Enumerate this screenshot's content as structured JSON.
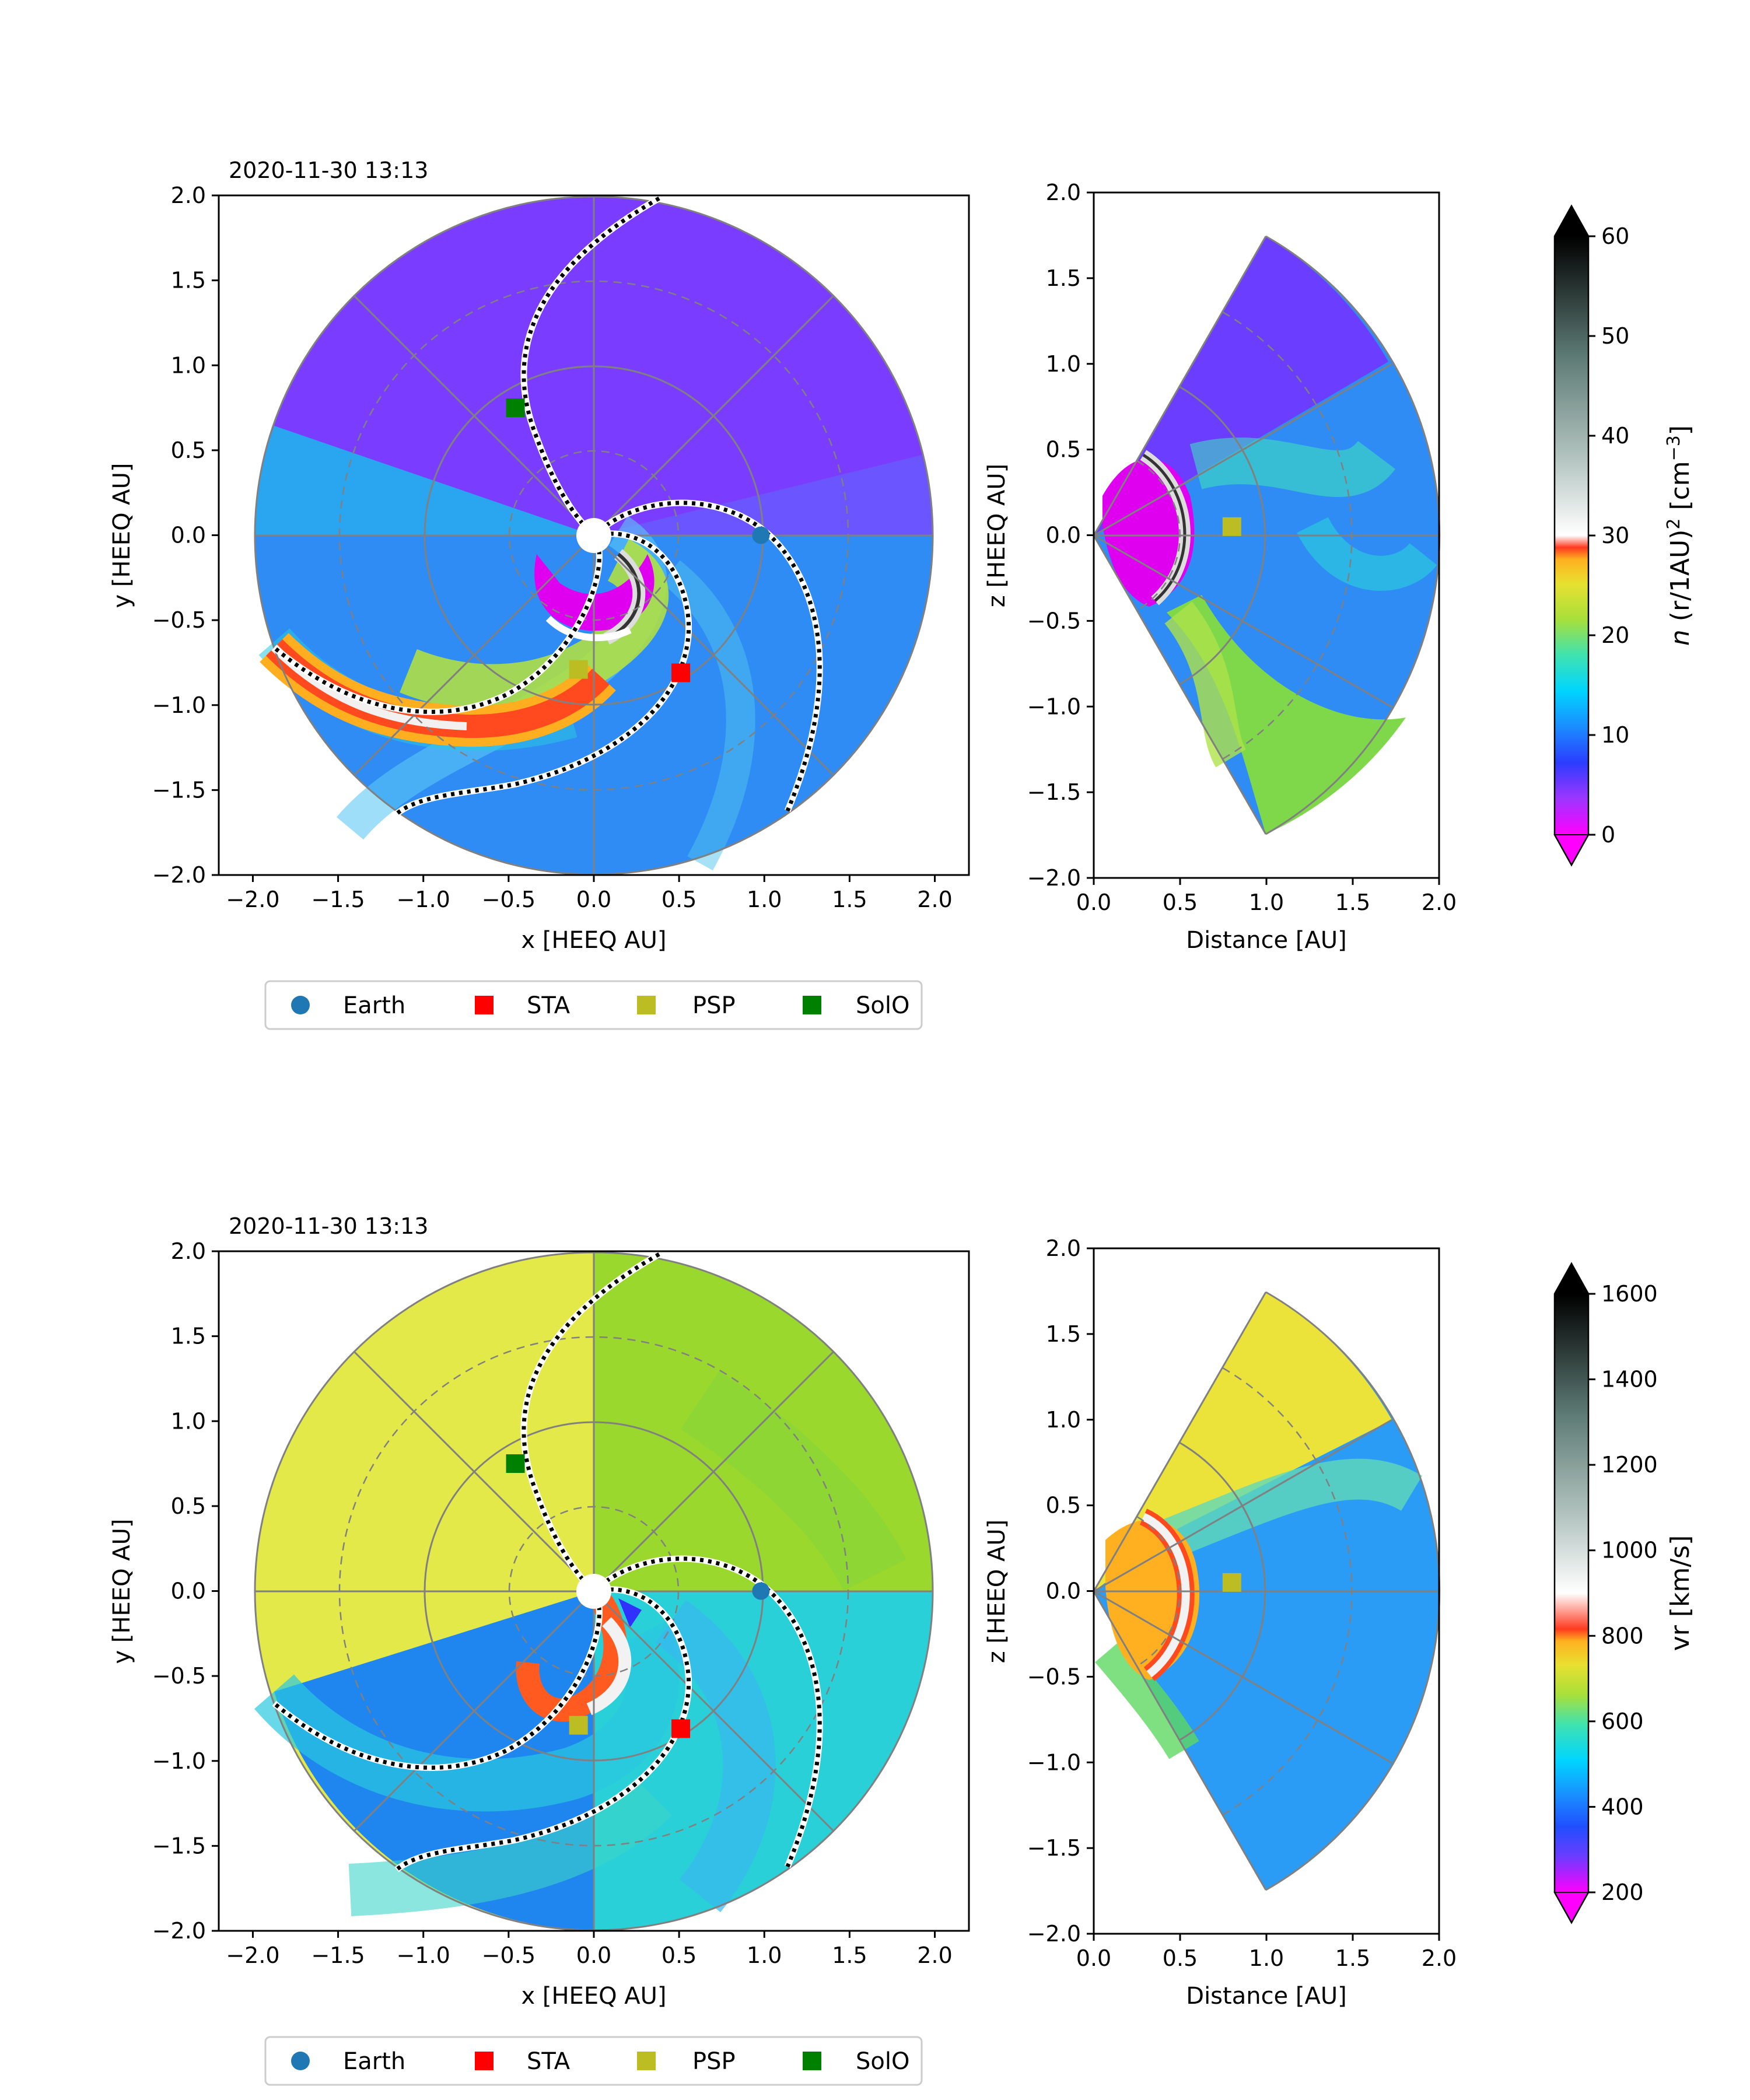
{
  "chart_data": [
    {
      "type": "heatmap",
      "panel": "top-equatorial",
      "title": "2020-11-30 13:13",
      "xlabel": "x [HEEQ AU]",
      "ylabel": "y [HEEQ AU]",
      "xlim": [
        -2.2,
        2.2
      ],
      "ylim": [
        -2.0,
        2.0
      ],
      "xticks": [
        "−2.0",
        "−1.5",
        "−1.0",
        "−0.5",
        "0.0",
        "0.5",
        "1.0",
        "1.5",
        "2.0"
      ],
      "yticks": [
        "−2.0",
        "−1.5",
        "−1.0",
        "−0.5",
        "0.0",
        "0.5",
        "1.0",
        "1.5",
        "2.0"
      ],
      "background": "low-density",
      "spacecraft": [
        {
          "name": "Earth",
          "x": 0.98,
          "y": 0.0
        },
        {
          "name": "STA",
          "x": 0.51,
          "y": -0.81
        },
        {
          "name": "PSP",
          "x": -0.09,
          "y": -0.79
        },
        {
          "name": "SolO",
          "x": -0.46,
          "y": 0.75
        }
      ]
    },
    {
      "type": "heatmap",
      "panel": "top-meridional",
      "xlabel": "Distance [AU]",
      "ylabel": "z [HEEQ AU]",
      "xlim": [
        0.0,
        2.0
      ],
      "ylim": [
        -2.0,
        2.0
      ],
      "xticks": [
        "0.0",
        "0.5",
        "1.0",
        "1.5",
        "2.0"
      ],
      "yticks": [
        "−2.0",
        "−1.5",
        "−1.0",
        "−0.5",
        "0.0",
        "0.5",
        "1.0",
        "1.5",
        "2.0"
      ],
      "spacecraft": [
        {
          "name": "PSP",
          "x": 0.8,
          "y": 0.05
        }
      ]
    },
    {
      "type": "heatmap",
      "panel": "bottom-equatorial",
      "title": "2020-11-30 13:13",
      "xlabel": "x [HEEQ AU]",
      "ylabel": "y [HEEQ AU]",
      "xlim": [
        -2.2,
        2.2
      ],
      "ylim": [
        -2.0,
        2.0
      ],
      "xticks": [
        "−2.0",
        "−1.5",
        "−1.0",
        "−0.5",
        "0.0",
        "0.5",
        "1.0",
        "1.5",
        "2.0"
      ],
      "yticks": [
        "−2.0",
        "−1.5",
        "−1.0",
        "−0.5",
        "0.0",
        "0.5",
        "1.0",
        "1.5",
        "2.0"
      ],
      "spacecraft": [
        {
          "name": "Earth",
          "x": 0.98,
          "y": 0.0
        },
        {
          "name": "STA",
          "x": 0.51,
          "y": -0.81
        },
        {
          "name": "PSP",
          "x": -0.09,
          "y": -0.79
        },
        {
          "name": "SolO",
          "x": -0.46,
          "y": 0.75
        }
      ]
    },
    {
      "type": "heatmap",
      "panel": "bottom-meridional",
      "xlabel": "Distance [AU]",
      "ylabel": "z [HEEQ AU]",
      "xlim": [
        0.0,
        2.0
      ],
      "ylim": [
        -2.0,
        2.0
      ],
      "xticks": [
        "0.0",
        "0.5",
        "1.0",
        "1.5",
        "2.0"
      ],
      "yticks": [
        "−2.0",
        "−1.5",
        "−1.0",
        "−0.5",
        "0.0",
        "0.5",
        "1.0",
        "1.5",
        "2.0"
      ],
      "spacecraft": [
        {
          "name": "PSP",
          "x": 0.8,
          "y": 0.05
        }
      ]
    }
  ],
  "colorbars": [
    {
      "label_n": "n",
      "label_mid": "(r/1AU)",
      "label_sq": "2",
      "label_unit": "[cm",
      "label_exp": "−3",
      "label_close": "]",
      "ticks": [
        "0",
        "10",
        "20",
        "30",
        "40",
        "50",
        "60"
      ],
      "range": [
        0,
        60
      ]
    },
    {
      "label": "vr  [km/s]",
      "ticks": [
        "200",
        "400",
        "600",
        "800",
        "1000",
        "1200",
        "1400",
        "1600"
      ],
      "range": [
        200,
        1600
      ]
    }
  ],
  "legend": [
    {
      "label": "Earth",
      "color": "#1f77b4",
      "marker": "circle"
    },
    {
      "label": "STA",
      "color": "#ff0000",
      "marker": "square"
    },
    {
      "label": "PSP",
      "color": "#bcbd22",
      "marker": "square"
    },
    {
      "label": "SolO",
      "color": "#008000",
      "marker": "square"
    }
  ],
  "colors": {
    "density_low": "#7a3dff",
    "density_mid": "#2f9cf0",
    "speed_slow": "#1f7ef0",
    "speed_fast": "#e8e83a"
  }
}
